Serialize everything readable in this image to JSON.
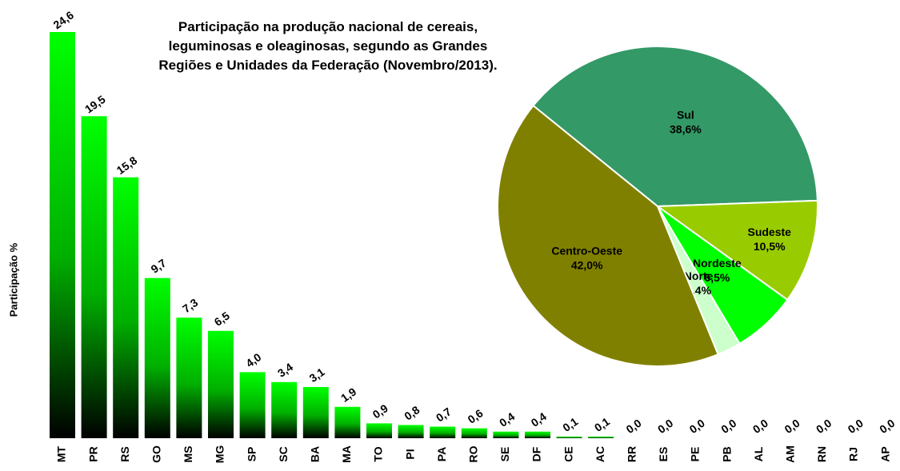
{
  "chart_data": [
    {
      "type": "bar",
      "title": "Participação na produção nacional de cereais, leguminosas e oleaginosas, segundo as Grandes Regiões e Unidades da Federação  (Novembro/2013).",
      "y_label": "Participação %",
      "categories": [
        "MT",
        "PR",
        "RS",
        "GO",
        "MS",
        "MG",
        "SP",
        "SC",
        "BA",
        "MA",
        "TO",
        "PI",
        "PA",
        "RO",
        "SE",
        "DF",
        "CE",
        "AC",
        "RR",
        "ES",
        "PE",
        "PB",
        "AL",
        "AM",
        "RN",
        "RJ",
        "AP"
      ],
      "values": [
        24.6,
        19.5,
        15.8,
        9.7,
        7.3,
        6.5,
        4.0,
        3.4,
        3.1,
        1.9,
        0.9,
        0.8,
        0.7,
        0.6,
        0.4,
        0.4,
        0.1,
        0.1,
        0.0,
        0.0,
        0.0,
        0.0,
        0.0,
        0.0,
        0.0,
        0.0,
        0.0
      ],
      "value_labels": [
        "24,6",
        "19,5",
        "15,8",
        "9,7",
        "7,3",
        "6,5",
        "4,0",
        "3,4",
        "3,1",
        "1,9",
        "0,9",
        "0,8",
        "0,7",
        "0,6",
        "0,4",
        "0,4",
        "0,1",
        "0,1",
        "0,0",
        "0,0",
        "0,0",
        "0,0",
        "0,0",
        "0,0",
        "0,0",
        "0,0",
        "0,0"
      ],
      "color": "#00ff00"
    },
    {
      "type": "pie",
      "categories": [
        "Sul",
        "Sudeste",
        "Nordeste",
        "Norte",
        "Centro-Oeste"
      ],
      "values": [
        38.6,
        10.5,
        6.5,
        2.4,
        42.0
      ],
      "value_labels": [
        "38,6%",
        "10,5%",
        "6,5%",
        "2,4%",
        "42,0%"
      ],
      "colors": [
        "#339966",
        "#99cc00",
        "#00ff00",
        "#ccffcc",
        "#808000"
      ]
    }
  ]
}
